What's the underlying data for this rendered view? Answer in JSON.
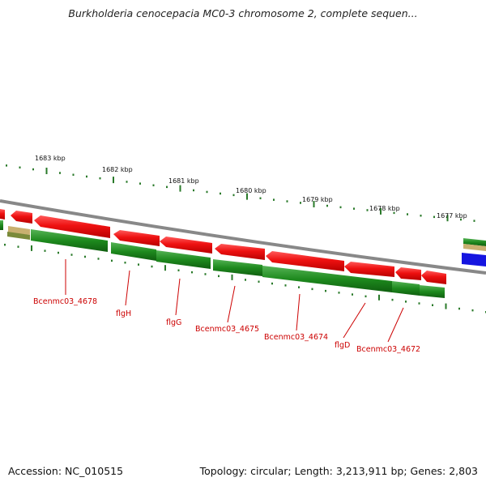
{
  "title": "Burkholderia cenocepacia MC0-3 chromosome 2, complete sequen...",
  "footer": {
    "accession": "Accession: NC_010515",
    "summary": "Topology: circular; Length: 3,213,911 bp; Genes: 2,803"
  },
  "scale_labels": [
    "1683 kbp",
    "1682 kbp",
    "1681 kbp",
    "1680 kbp",
    "1679 kbp",
    "1678 kbp",
    "1677 kbp"
  ],
  "gene_labels": [
    "Bcenmc03_4678",
    "flgH",
    "flgG",
    "Bcenmc03_4675",
    "Bcenmc03_4674",
    "flgD",
    "Bcenmc03_4672"
  ],
  "colors": {
    "cds_red": "#ee1111",
    "gene_green": "#1e8a1e",
    "backbone": "#888888",
    "tick_green": "#2a7a2a",
    "label_red": "#cc0000",
    "blue_feature": "#1515e0",
    "tan_feature": "#c8b070"
  }
}
